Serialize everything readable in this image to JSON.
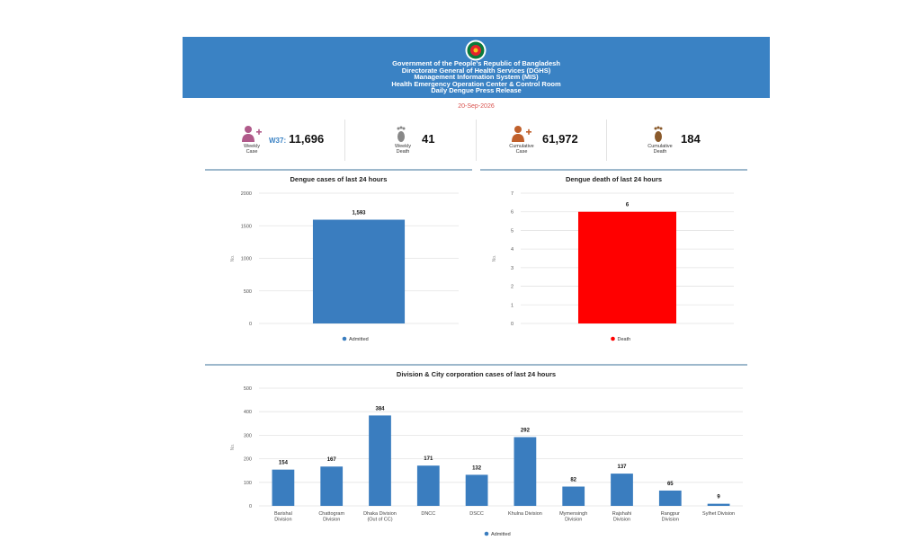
{
  "header": {
    "lines": [
      "Government of the People's Republic of Bangladesh",
      "Directorate General of Health Services (DGHS)",
      "Management Information System (MIS)",
      "Health Emergency Operation Center & Control Room",
      "Daily Dengue Press Release"
    ],
    "date": "20-Sep-2026"
  },
  "colors": {
    "banner": "#3a82c4",
    "bar_blue": "#3a7dbf",
    "bar_red": "#ff0000",
    "date": "#d9534f"
  },
  "stats": [
    {
      "icon": "patient-plus-icon",
      "label_lines": [
        "Weekly",
        "Case"
      ],
      "prefix": "W37:",
      "value": "11,696"
    },
    {
      "icon": "footprint-icon",
      "label_lines": [
        "Weekly",
        "Death"
      ],
      "prefix": "",
      "value": "41"
    },
    {
      "icon": "patient-plus-icon",
      "label_lines": [
        "Cumulative",
        "Case"
      ],
      "prefix": "",
      "value": "61,972"
    },
    {
      "icon": "footprint-icon",
      "label_lines": [
        "Cumulative",
        "Death"
      ],
      "prefix": "",
      "value": "184"
    }
  ],
  "chart_data": [
    {
      "type": "bar",
      "title": "Dengue cases of last 24 hours",
      "ylabel": "No.",
      "ylim": [
        0,
        2000
      ],
      "yticks": [
        0,
        500,
        1000,
        1500,
        2000
      ],
      "categories": [
        ""
      ],
      "series": [
        {
          "name": "Admitted",
          "color": "#3a7dbf",
          "values": [
            1593
          ],
          "labels": [
            "1,593"
          ]
        }
      ],
      "legend": "bottom-center",
      "grid": true
    },
    {
      "type": "bar",
      "title": "Dengue death of last 24 hours",
      "ylabel": "No.",
      "ylim": [
        0,
        7
      ],
      "yticks": [
        0,
        1,
        2,
        3,
        4,
        5,
        6,
        7
      ],
      "categories": [
        ""
      ],
      "series": [
        {
          "name": "Death",
          "color": "#ff0000",
          "values": [
            6
          ],
          "labels": [
            "6"
          ]
        }
      ],
      "legend": "bottom-center",
      "grid": true
    },
    {
      "type": "bar",
      "title": "Division & City corporation cases of last 24 hours",
      "ylabel": "No.",
      "ylim": [
        0,
        500
      ],
      "yticks": [
        0,
        100,
        200,
        300,
        400,
        500
      ],
      "categories": [
        [
          "Barishal",
          "Division"
        ],
        [
          "Chattogram",
          "Division"
        ],
        [
          "Dhaka Division",
          "(Out of CC)"
        ],
        [
          "DNCC"
        ],
        [
          "DSCC"
        ],
        [
          "Khulna Division"
        ],
        [
          "Mymensingh",
          "Division"
        ],
        [
          "Rajshahi",
          "Division"
        ],
        [
          "Rangpur",
          "Division"
        ],
        [
          "Sylhet Division"
        ]
      ],
      "series": [
        {
          "name": "Admitted",
          "color": "#3a7dbf",
          "values": [
            154,
            167,
            384,
            171,
            132,
            292,
            82,
            137,
            65,
            9
          ],
          "labels": [
            "154",
            "167",
            "384",
            "171",
            "132",
            "292",
            "82",
            "137",
            "65",
            "9"
          ]
        }
      ],
      "legend": "bottom-center",
      "grid": true
    }
  ]
}
